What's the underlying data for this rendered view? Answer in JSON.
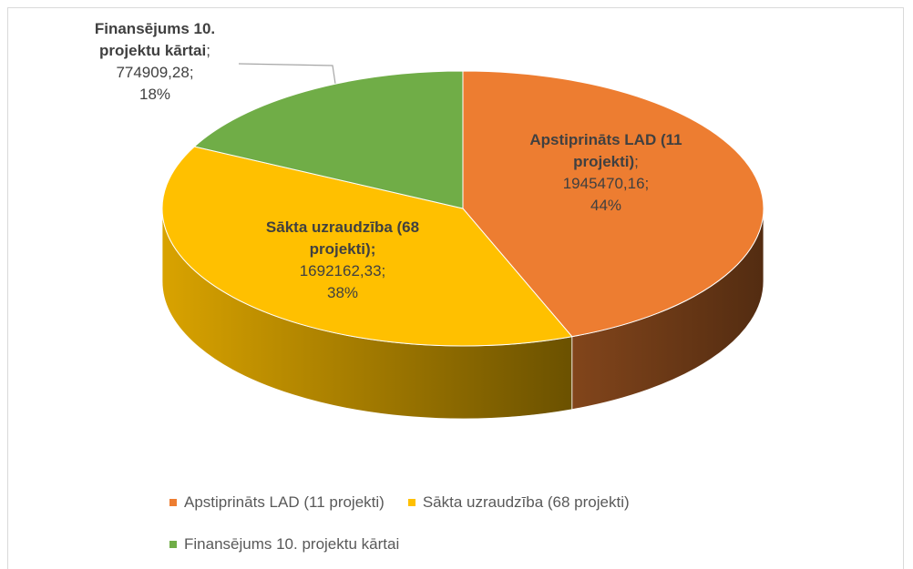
{
  "chart_data": {
    "type": "pie",
    "depth3d": true,
    "categories": [
      "Apstiprināts LAD (11 projekti)",
      "Sākta uzraudzība (68 projekti)",
      "Finansējums 10. projektu kārtai"
    ],
    "values": [
      1945470.16,
      1692162.33,
      774909.28
    ],
    "value_labels": [
      "1945470,16",
      "1692162,33",
      "774909,28"
    ],
    "percentages": [
      44,
      38,
      18
    ],
    "percentage_labels": [
      "44%",
      "38%",
      "18%"
    ],
    "label_separator": ";",
    "colors": [
      "#ED7D31",
      "#FFC000",
      "#70AD47"
    ],
    "legend": "bottom"
  }
}
